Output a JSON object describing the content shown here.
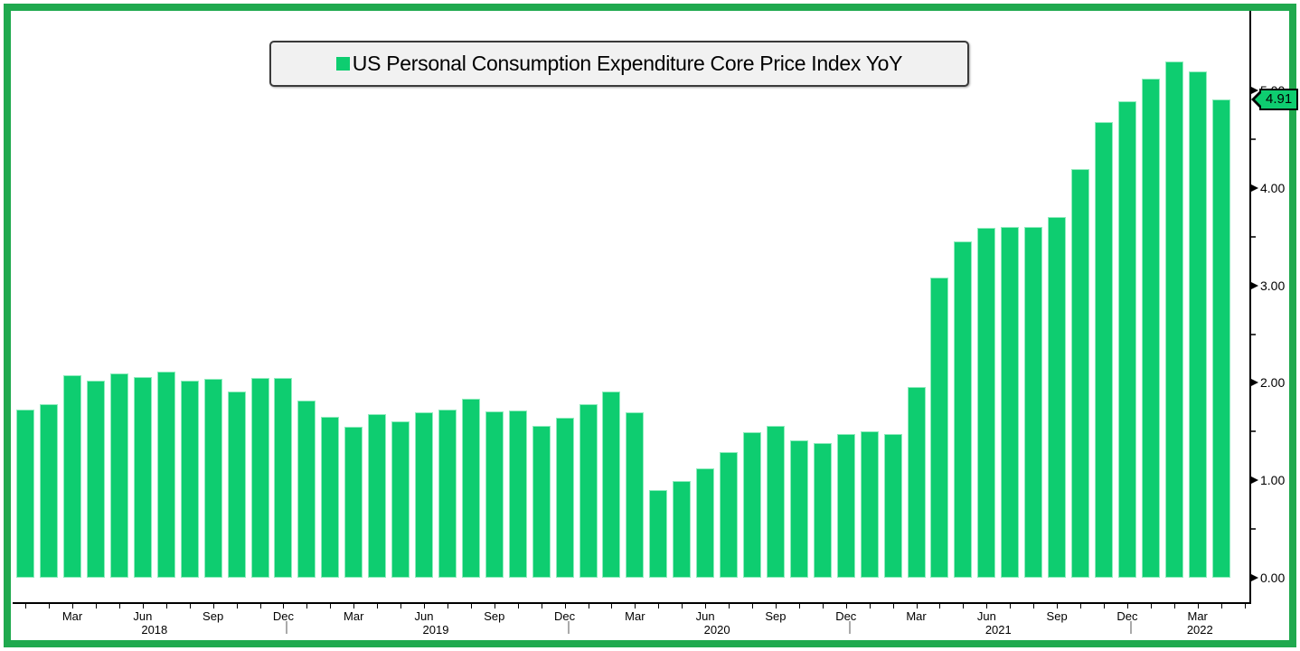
{
  "legend": {
    "label": "US Personal Consumption Expenditure Core Price Index YoY"
  },
  "value_tag": {
    "text": "4.91"
  },
  "colors": {
    "bar": "#0ecd70",
    "bar_edge": "#8fecbd",
    "frame": "#1fa94e",
    "axis": "#000000",
    "legend_bg": "#f1f1f1",
    "year_separator": "#aaaaaa"
  },
  "y_axis": {
    "major_labels": [
      "0.00",
      "1.00",
      "2.00",
      "3.00",
      "4.00",
      "5.00"
    ],
    "major_values": [
      0,
      1,
      2,
      3,
      4,
      5
    ],
    "minor_values": [
      0.5,
      1.5,
      2.5,
      3.5,
      4.5
    ]
  },
  "x_axis": {
    "month_labels": [
      {
        "text": "Mar",
        "i": 2
      },
      {
        "text": "Jun",
        "i": 5
      },
      {
        "text": "Sep",
        "i": 8
      },
      {
        "text": "Dec",
        "i": 11
      },
      {
        "text": "Mar",
        "i": 14
      },
      {
        "text": "Jun",
        "i": 17
      },
      {
        "text": "Sep",
        "i": 20
      },
      {
        "text": "Dec",
        "i": 23
      },
      {
        "text": "Mar",
        "i": 26
      },
      {
        "text": "Jun",
        "i": 29
      },
      {
        "text": "Sep",
        "i": 32
      },
      {
        "text": "Dec",
        "i": 35
      },
      {
        "text": "Mar",
        "i": 38
      },
      {
        "text": "Jun",
        "i": 41
      },
      {
        "text": "Sep",
        "i": 44
      },
      {
        "text": "Dec",
        "i": 47
      },
      {
        "text": "Mar",
        "i": 50
      }
    ],
    "year_labels": [
      {
        "text": "2018",
        "pos": 5.5
      },
      {
        "text": "2019",
        "pos": 17.5
      },
      {
        "text": "2020",
        "pos": 29.5
      },
      {
        "text": "2021",
        "pos": 41.5
      },
      {
        "text": "2022",
        "pos": 50.1
      }
    ],
    "separator_after_months": [
      11,
      23,
      35,
      47
    ],
    "tick_month_count": 53
  },
  "chart_data": {
    "type": "bar",
    "title": "US Personal Consumption Expenditure Core Price Index YoY",
    "ylabel": "",
    "xlabel": "",
    "ylim": [
      0,
      5.85
    ],
    "grid": false,
    "legend_position": "top",
    "last_value_label": "4.91",
    "x": [
      "2018-01",
      "2018-02",
      "2018-03",
      "2018-04",
      "2018-05",
      "2018-06",
      "2018-07",
      "2018-08",
      "2018-09",
      "2018-10",
      "2018-11",
      "2018-12",
      "2019-01",
      "2019-02",
      "2019-03",
      "2019-04",
      "2019-05",
      "2019-06",
      "2019-07",
      "2019-08",
      "2019-09",
      "2019-10",
      "2019-11",
      "2019-12",
      "2020-01",
      "2020-02",
      "2020-03",
      "2020-04",
      "2020-05",
      "2020-06",
      "2020-07",
      "2020-08",
      "2020-09",
      "2020-10",
      "2020-11",
      "2020-12",
      "2021-01",
      "2021-02",
      "2021-03",
      "2021-04",
      "2021-05",
      "2021-06",
      "2021-07",
      "2021-08",
      "2021-09",
      "2021-10",
      "2021-11",
      "2021-12",
      "2022-01",
      "2022-02",
      "2022-03",
      "2022-04"
    ],
    "values": [
      1.73,
      1.78,
      2.08,
      2.02,
      2.1,
      2.06,
      2.12,
      2.02,
      2.04,
      1.91,
      2.05,
      2.05,
      1.82,
      1.65,
      1.55,
      1.68,
      1.61,
      1.7,
      1.73,
      1.84,
      1.71,
      1.72,
      1.56,
      1.64,
      1.78,
      1.91,
      1.7,
      0.9,
      0.99,
      1.12,
      1.29,
      1.49,
      1.56,
      1.41,
      1.38,
      1.48,
      1.5,
      1.48,
      1.96,
      3.08,
      3.45,
      3.59,
      3.6,
      3.6,
      3.7,
      4.19,
      4.68,
      4.89,
      5.12,
      5.3,
      5.2,
      4.91
    ]
  }
}
